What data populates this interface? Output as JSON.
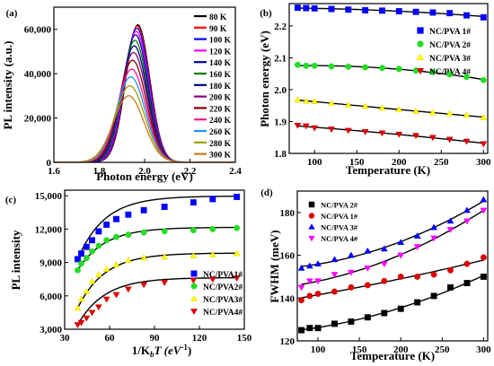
{
  "chart_data": [
    {
      "panel": "(a)",
      "type": "line",
      "xlabel": "Photon energy (eV)",
      "ylabel": "PL intensity (a.u.)",
      "xlim": [
        1.6,
        2.4
      ],
      "ylim": [
        0,
        70000
      ],
      "xticks": [
        "1.6",
        "1.8",
        "2.0",
        "2.2",
        "2.4"
      ],
      "yticks": [
        "0",
        "20,000",
        "40,000",
        "60,000"
      ],
      "legend_position": "top-right",
      "series": [
        {
          "name": "80 K",
          "color": "#000000",
          "peak_energy": 1.97,
          "peak": 62000,
          "fwhm": 0.125
        },
        {
          "name": "90 K",
          "color": "#ff0000",
          "peak_energy": 1.968,
          "peak": 61500,
          "fwhm": 0.126
        },
        {
          "name": "100 K",
          "color": "#0000ff",
          "peak_energy": 1.966,
          "peak": 60500,
          "fwhm": 0.127
        },
        {
          "name": "120 K",
          "color": "#ff00ff",
          "peak_energy": 1.963,
          "peak": 59000,
          "fwhm": 0.129
        },
        {
          "name": "140 K",
          "color": "#0000a0",
          "peak_energy": 1.96,
          "peak": 57500,
          "fwhm": 0.131
        },
        {
          "name": "160 K",
          "color": "#008000",
          "peak_energy": 1.957,
          "peak": 55000,
          "fwhm": 0.133
        },
        {
          "name": "180 K",
          "color": "#00008b",
          "peak_energy": 1.954,
          "peak": 52500,
          "fwhm": 0.136
        },
        {
          "name": "200 K",
          "color": "#800080",
          "peak_energy": 1.951,
          "peak": 49500,
          "fwhm": 0.139
        },
        {
          "name": "220 K",
          "color": "#800000",
          "peak_energy": 1.947,
          "peak": 46000,
          "fwhm": 0.142
        },
        {
          "name": "240 K",
          "color": "#ff1493",
          "peak_energy": 1.943,
          "peak": 42000,
          "fwhm": 0.146
        },
        {
          "name": "260 K",
          "color": "#1e90ff",
          "peak_energy": 1.939,
          "peak": 38500,
          "fwhm": 0.15
        },
        {
          "name": "280 K",
          "color": "#a0a000",
          "peak_energy": 1.935,
          "peak": 34500,
          "fwhm": 0.154
        },
        {
          "name": "300 K",
          "color": "#c87820",
          "peak_energy": 1.93,
          "peak": 30000,
          "fwhm": 0.158
        }
      ]
    },
    {
      "panel": "(b)",
      "type": "scatter",
      "xlabel": "Temperature (K)",
      "ylabel": "Photon energy (eV)",
      "xlim": [
        70,
        305
      ],
      "ylim": [
        1.8,
        2.27
      ],
      "xticks": [
        100,
        150,
        200,
        250,
        300
      ],
      "yticks": [
        "1.8",
        "1.9",
        "2.0",
        "2.1",
        "2.2"
      ],
      "legend_position": "right",
      "x": [
        80,
        90,
        100,
        120,
        140,
        160,
        180,
        200,
        220,
        240,
        260,
        280,
        300
      ],
      "series": [
        {
          "name": "NC/PVA 1#",
          "color": "#0000ff",
          "marker": "square",
          "values": [
            2.257,
            2.256,
            2.255,
            2.253,
            2.251,
            2.249,
            2.248,
            2.246,
            2.244,
            2.242,
            2.24,
            2.233,
            2.227
          ]
        },
        {
          "name": "NC/PVA 2#",
          "color": "#22dd22",
          "marker": "circle",
          "values": [
            2.078,
            2.075,
            2.075,
            2.073,
            2.072,
            2.07,
            2.068,
            2.065,
            2.06,
            2.055,
            2.048,
            2.04,
            2.03
          ]
        },
        {
          "name": "NC/PVA 3#",
          "color": "#ffff00",
          "marker": "triangle-up",
          "values": [
            1.968,
            1.964,
            1.963,
            1.958,
            1.952,
            1.948,
            1.942,
            1.937,
            1.932,
            1.928,
            1.925,
            1.92,
            1.912
          ]
        },
        {
          "name": "NC/PVA 4#",
          "color": "#dd0000",
          "marker": "triangle-down",
          "values": [
            1.888,
            1.886,
            1.88,
            1.876,
            1.872,
            1.868,
            1.864,
            1.86,
            1.856,
            1.85,
            1.844,
            1.838,
            1.83
          ]
        }
      ]
    },
    {
      "panel": "(c)",
      "type": "scatter",
      "xlabel": "1/K",
      "xlabel_sub": "b",
      "xlabel_tail": "T (eV",
      "xlabel_sup": "-1",
      "xlabel_end": ")",
      "ylabel": "PL intensity",
      "xlim": [
        30,
        150
      ],
      "ylim": [
        3000,
        15500
      ],
      "xticks": [
        30,
        60,
        90,
        120,
        150
      ],
      "yticks": [
        "3,000",
        "6,000",
        "9,000",
        "12,000",
        "15,000"
      ],
      "legend_position": "bottom-right",
      "x": [
        38.7,
        41.1,
        44.6,
        48.3,
        52.7,
        58.0,
        64.5,
        72.5,
        82.9,
        96.7,
        116.0,
        128.9,
        145.0
      ],
      "series": [
        {
          "name": "NC/PVA1#",
          "color": "#0000ff",
          "marker": "square",
          "values": [
            9300,
            9800,
            10400,
            11000,
            11800,
            12400,
            12900,
            13300,
            13700,
            14000,
            14400,
            14700,
            14900
          ]
        },
        {
          "name": "NC/PVA2#",
          "color": "#22dd22",
          "marker": "circle",
          "values": [
            8300,
            8900,
            9400,
            10000,
            10500,
            11000,
            11300,
            11500,
            11700,
            11800,
            11900,
            12000,
            12100
          ]
        },
        {
          "name": "NC/PVA3#",
          "color": "#ffff00",
          "marker": "triangle-up",
          "values": [
            4900,
            5700,
            6400,
            7300,
            7900,
            8400,
            8800,
            9200,
            9400,
            9500,
            9600,
            9700,
            9800
          ]
        },
        {
          "name": "NC/PVA4#",
          "color": "#dd0000",
          "marker": "triangle-down",
          "values": [
            3400,
            3600,
            4000,
            4500,
            5000,
            5700,
            6100,
            6600,
            7000,
            7200,
            7400,
            7500,
            7600
          ]
        }
      ]
    },
    {
      "panel": "(d)",
      "type": "scatter",
      "xlabel": "Temperature (K)",
      "ylabel": "FWHM (meV)",
      "xlim": [
        75,
        305
      ],
      "ylim": [
        120,
        190
      ],
      "xticks": [
        100,
        150,
        200,
        250,
        300
      ],
      "yticks": [
        "120",
        "140",
        "160",
        "180"
      ],
      "legend_position": "top-left",
      "x": [
        80,
        90,
        100,
        120,
        140,
        160,
        180,
        200,
        220,
        240,
        260,
        280,
        300
      ],
      "series": [
        {
          "name": "NC/PVA 2#",
          "color": "#000000",
          "marker": "square",
          "values": [
            125,
            126,
            126,
            128,
            129,
            131,
            133,
            135,
            138,
            141,
            145,
            147,
            150
          ]
        },
        {
          "name": "NC/PVA 1#",
          "color": "#dd0000",
          "marker": "circle",
          "values": [
            139,
            141,
            142,
            143,
            145,
            146,
            148,
            150,
            150,
            151,
            153,
            156,
            159
          ]
        },
        {
          "name": "NC/PVA 3#",
          "color": "#0000ff",
          "marker": "triangle-up",
          "values": [
            154,
            155,
            156,
            158,
            160,
            162,
            163,
            166,
            169,
            173,
            176,
            181,
            186
          ]
        },
        {
          "name": "NC/PVA 4#",
          "color": "#ff00ff",
          "marker": "triangle-down",
          "values": [
            145,
            148,
            148,
            151,
            152,
            154,
            156,
            160,
            164,
            168,
            172,
            176,
            181
          ]
        }
      ]
    }
  ]
}
